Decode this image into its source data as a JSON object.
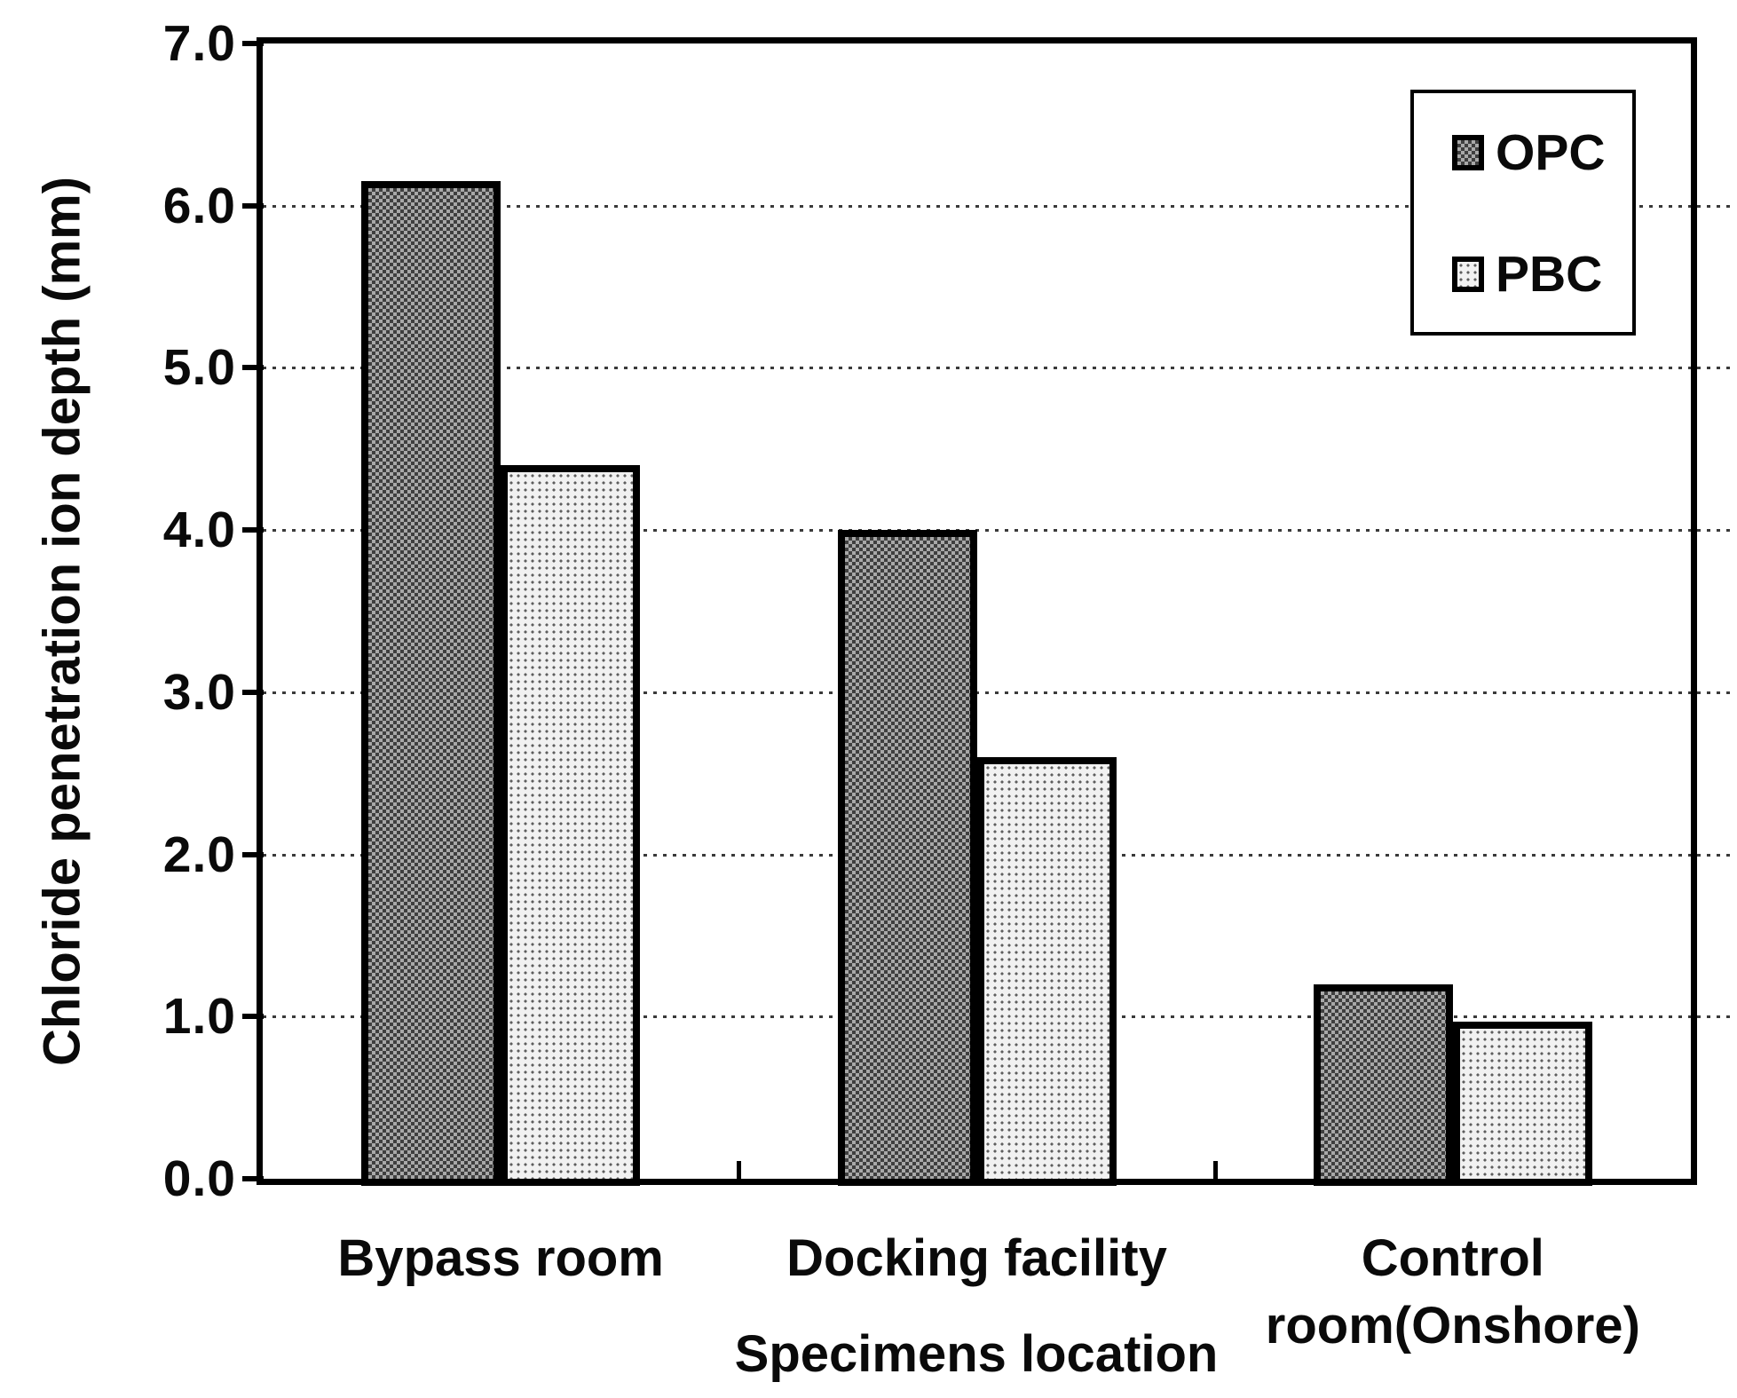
{
  "figure": {
    "background": "#ffffff",
    "axis_color": "#000000",
    "text_color": "#0a0a0a"
  },
  "chart_data": {
    "type": "bar",
    "title": "",
    "xlabel": "Specimens location",
    "ylabel": "Chloride penetration ion depth (mm)",
    "categories": [
      "Bypass room",
      "Docking facility",
      "Control\nroom(Onshore)"
    ],
    "series": [
      {
        "name": "OPC",
        "values": [
          6.15,
          4.0,
          1.2
        ],
        "pattern": "checker",
        "fill": "#a8a8a8",
        "tone": "#747474"
      },
      {
        "name": "PBC",
        "values": [
          4.4,
          2.6,
          0.97
        ],
        "pattern": "dots",
        "fill": "#f1f1f1",
        "tone": "#e2e2e2"
      }
    ],
    "ylim": [
      0.0,
      7.0
    ],
    "yticks": [
      0,
      1,
      2,
      3,
      4,
      5,
      6,
      7
    ],
    "ytick_labels": [
      "0.0",
      "1.0",
      "2.0",
      "3.0",
      "4.0",
      "5.0",
      "6.0",
      "7.0"
    ],
    "gridline_values": [
      1,
      2,
      3,
      4,
      5,
      6
    ],
    "grid": "horizontal-dotted",
    "bar_border_color": "#000000",
    "legend": {
      "position": "top-right",
      "entries": [
        "OPC",
        "PBC"
      ]
    }
  }
}
